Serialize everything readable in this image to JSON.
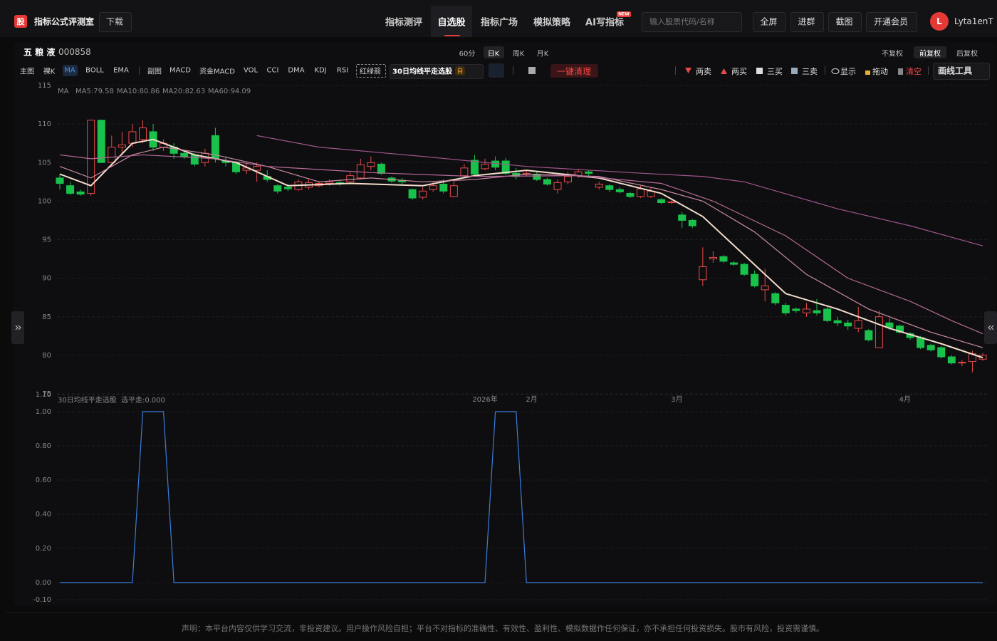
{
  "header": {
    "logo": "股",
    "title": "指标公式评测室",
    "download": "下载",
    "nav": [
      "指标测评",
      "自选股",
      "指标广场",
      "模拟策略",
      "AI写指标"
    ],
    "new_badge": "NEW",
    "search_placeholder": "输入股票代码/名称",
    "buttons": [
      "全屏",
      "进群",
      "截图",
      "开通会员"
    ],
    "avatar": "L",
    "user": "Lyta1enT"
  },
  "stock": {
    "name": "五 粮 液",
    "code": "000858",
    "periods": [
      "60分",
      "日K",
      "周K",
      "月K"
    ],
    "adjust": [
      "不复权",
      "前复权",
      "后复权"
    ]
  },
  "toolbar": {
    "main": [
      "主图",
      "裸K",
      "MA",
      "BOLL",
      "EMA"
    ],
    "sub": [
      "副图",
      "MACD",
      "资金MACD",
      "VOL",
      "CCI",
      "DMA",
      "KDJ",
      "RSI"
    ],
    "tag": "红绿箭",
    "active_indicator": "30日均线平走选股",
    "indicator_badge": "自",
    "clear": "一键清理",
    "tools": [
      "两卖",
      "两买",
      "三买",
      "三卖",
      "显示",
      "拖动",
      "清空"
    ],
    "draw": "画线工具"
  },
  "chart_data": [
    {
      "type": "candlestick",
      "legend_title": "MA",
      "up_color": "#e84a4a",
      "down_color": "#19c24a",
      "grid": true,
      "ylim": [
        75,
        115
      ],
      "yticks": [
        75,
        80,
        85,
        90,
        95,
        100,
        105,
        110,
        115
      ],
      "xlim": [
        0,
        89
      ],
      "xticks": [
        {
          "value": 41,
          "label": "2026年"
        },
        {
          "value": 45.5,
          "label": "2月"
        },
        {
          "value": 59.5,
          "label": "3月"
        },
        {
          "value": 81.5,
          "label": "4月"
        }
      ],
      "open": [
        103,
        102,
        101.2,
        101,
        110.5,
        105,
        107,
        107.5,
        108,
        109,
        107,
        107,
        106.2,
        106,
        105,
        108.5,
        105.2,
        105,
        104,
        104,
        103.2,
        102,
        101.8,
        101.5,
        101.8,
        102,
        102.3,
        102.4,
        102.5,
        103,
        104.5,
        104.8,
        103,
        102.7,
        101.5,
        100.5,
        101.5,
        102.2,
        100.6,
        103.3,
        105.3,
        104.2,
        105.2,
        105.2,
        103.6,
        103.5,
        103.5,
        102.8,
        101.5,
        102.5,
        103.3,
        103.8,
        101.8,
        102,
        101.5,
        101,
        100.6,
        100.6,
        100.2,
        99.8,
        98.2,
        97.5,
        89.8,
        92.5,
        92.8,
        92,
        91.8,
        90.5,
        88.5,
        88,
        86.5,
        86,
        85.5,
        85.8,
        86,
        84.5,
        84.2,
        83.5,
        83.2,
        81,
        84.2,
        83.8,
        82.8,
        82.3,
        81.3,
        81,
        79.8,
        79,
        79.2,
        79.5
      ],
      "close": [
        102.3,
        101,
        100.9,
        110.5,
        105,
        107,
        107.3,
        109,
        109.5,
        107,
        107.5,
        106.2,
        105.8,
        104.8,
        106.2,
        105.5,
        105,
        103.8,
        104.3,
        104.5,
        102.8,
        101.3,
        101.6,
        102.5,
        102.4,
        102.3,
        102.5,
        102.3,
        103.3,
        104.7,
        105,
        103.6,
        102.6,
        102.5,
        100.4,
        101.3,
        102,
        101.3,
        102,
        104.3,
        103.5,
        104.8,
        104.4,
        103.6,
        103.2,
        103.6,
        102.8,
        102.2,
        102.4,
        103.2,
        103.8,
        103.6,
        102.2,
        101.5,
        101.2,
        100.6,
        101.6,
        101.3,
        99.8,
        99.9,
        97.5,
        96.8,
        91.5,
        92.7,
        92.2,
        91.8,
        90.5,
        89,
        89,
        86.8,
        85.5,
        85.8,
        86,
        85.5,
        84.5,
        84.2,
        83.8,
        84.5,
        82,
        85,
        83.6,
        83,
        82.3,
        81,
        80.7,
        79.8,
        79,
        79.1,
        80.2,
        80
      ],
      "high": [
        103.5,
        102.5,
        101.5,
        110.5,
        110.5,
        108.5,
        109,
        110,
        110.5,
        110,
        108,
        107.5,
        106.5,
        106.2,
        106.8,
        109.5,
        105.8,
        105.2,
        105,
        105,
        104,
        102.2,
        102.2,
        102.8,
        102.8,
        102.6,
        102.8,
        102.8,
        103.7,
        105.5,
        105.8,
        105,
        103.2,
        103,
        101.6,
        101.8,
        102.5,
        102.8,
        102.8,
        104.8,
        106,
        105.5,
        105.8,
        105.6,
        104.3,
        104,
        103.8,
        103,
        102.8,
        103.8,
        104.2,
        104,
        102.5,
        102.2,
        101.8,
        101.2,
        102,
        101.8,
        100.4,
        100.1,
        98.6,
        97.7,
        94,
        93.5,
        93,
        92.2,
        92,
        91,
        91.2,
        88.2,
        86.8,
        86.2,
        86.8,
        87.3,
        86.3,
        85,
        84.6,
        86.3,
        83.4,
        85.8,
        84.8,
        84,
        83,
        82.5,
        81.5,
        81.2,
        80,
        79.4,
        80.6,
        80.3
      ],
      "low": [
        101.5,
        100.8,
        100.7,
        100.7,
        105,
        104.5,
        106,
        107,
        107.5,
        106.5,
        106.5,
        105.5,
        105.5,
        104.5,
        104.5,
        105,
        104.5,
        103.5,
        103.5,
        102.5,
        102.5,
        101,
        101.3,
        101.3,
        101.5,
        101.8,
        102,
        102,
        102.2,
        102.8,
        104,
        103.4,
        102.4,
        102.2,
        100.2,
        100.2,
        101.2,
        101,
        100.5,
        103,
        103.2,
        104,
        104,
        103.4,
        102.8,
        103.3,
        102.6,
        102,
        101,
        102.2,
        103,
        103.3,
        101.5,
        101.2,
        101,
        100.4,
        100.4,
        100.4,
        99.6,
        99.6,
        96.5,
        96.5,
        89,
        92,
        92,
        91.6,
        90.3,
        88.8,
        87,
        86.5,
        85.2,
        85.5,
        85,
        85.2,
        84.3,
        83.8,
        83.3,
        83,
        81.8,
        81,
        83.3,
        82.8,
        82,
        80.8,
        80.5,
        79.6,
        78.8,
        78.6,
        77.8,
        79.3
      ],
      "series": [
        {
          "name": "MA5:79.58",
          "color": "#f3dccb",
          "x": [
            0,
            3,
            7,
            9,
            13,
            17,
            22,
            28,
            35,
            40,
            45,
            52,
            58,
            62,
            66,
            70,
            75,
            80,
            85,
            89
          ],
          "values": [
            103.5,
            102,
            107.5,
            108,
            106,
            105,
            102,
            102.3,
            102,
            103.3,
            104,
            103,
            101,
            98,
            93,
            88,
            86,
            83.5,
            81.5,
            79.7
          ]
        },
        {
          "name": "MA10:80.86",
          "color": "#c98aa0",
          "x": [
            0,
            3,
            7,
            10,
            15,
            20,
            25,
            30,
            35,
            40,
            45,
            52,
            58,
            62,
            67,
            72,
            78,
            84,
            89
          ],
          "values": [
            104.5,
            103,
            106,
            107,
            106,
            104.5,
            102.5,
            103,
            102.5,
            102.8,
            103.5,
            103.2,
            101.5,
            100,
            96,
            90.5,
            86,
            83,
            81
          ]
        },
        {
          "name": "MA20:82.63",
          "color": "#b86a98",
          "x": [
            0,
            3,
            8,
            15,
            20,
            30,
            40,
            50,
            58,
            63,
            70,
            76,
            82,
            86,
            89
          ],
          "values": [
            106,
            105.5,
            106,
            105.5,
            104.5,
            103.7,
            103.2,
            103.3,
            102.3,
            100,
            95.5,
            90,
            87,
            84.5,
            82.8
          ]
        },
        {
          "name": "MA60:94.09",
          "color": "#a0558c",
          "x": [
            19,
            25,
            35,
            45,
            55,
            62,
            66,
            75,
            82,
            89
          ],
          "values": [
            108.5,
            107,
            105.8,
            104.5,
            103.7,
            103.2,
            102.5,
            99,
            96.8,
            94.2
          ]
        }
      ]
    },
    {
      "type": "line",
      "title": "30日均线平走选股",
      "grid": true,
      "ylim": [
        -0.1,
        1.1
      ],
      "yticks": [
        {
          "value": -0.1,
          "label": "-0.10"
        },
        {
          "value": 0,
          "label": "0.00"
        },
        {
          "value": 0.2,
          "label": "0.20"
        },
        {
          "value": 0.4,
          "label": "0.40"
        },
        {
          "value": 0.6,
          "label": "0.60"
        },
        {
          "value": 0.8,
          "label": "0.80"
        },
        {
          "value": 1,
          "label": "1.00"
        },
        {
          "value": 1.1,
          "label": "1.10"
        }
      ],
      "xlim": [
        0,
        89
      ],
      "series": [
        {
          "name": "选平走:0.000",
          "color": "#3b7dd8",
          "x": [
            0,
            7,
            8,
            10,
            11,
            41,
            42,
            44,
            45,
            89
          ],
          "values": [
            0,
            0,
            1,
            1,
            0,
            0,
            1,
            1,
            0,
            0
          ]
        }
      ]
    }
  ],
  "footer": "声明：本平台内容仅供学习交流，非投资建议。用户操作风险自担；平台不对指标的准确性、有效性、盈利性、模拟数据作任何保证，亦不承担任何投资损失。股市有风险，投资需谨慎。"
}
